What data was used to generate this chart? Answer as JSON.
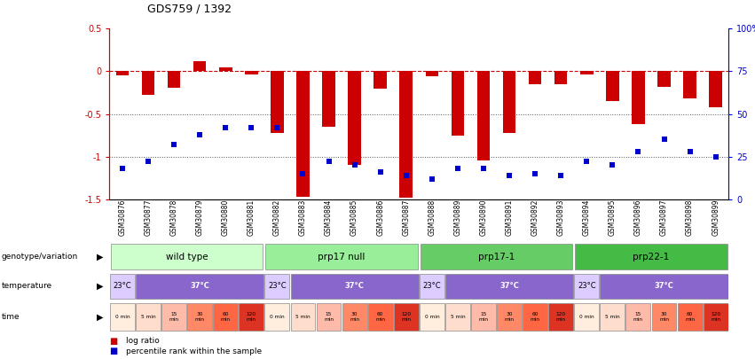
{
  "title": "GDS759 / 1392",
  "samples": [
    "GSM30876",
    "GSM30877",
    "GSM30878",
    "GSM30879",
    "GSM30880",
    "GSM30881",
    "GSM30882",
    "GSM30883",
    "GSM30884",
    "GSM30885",
    "GSM30886",
    "GSM30887",
    "GSM30888",
    "GSM30889",
    "GSM30890",
    "GSM30891",
    "GSM30892",
    "GSM30893",
    "GSM30894",
    "GSM30895",
    "GSM30896",
    "GSM30897",
    "GSM30898",
    "GSM30899"
  ],
  "log_ratio": [
    -0.05,
    -0.28,
    -0.19,
    0.12,
    0.05,
    -0.04,
    -0.72,
    -1.47,
    -0.65,
    -1.1,
    -0.2,
    -1.48,
    -0.06,
    -0.75,
    -1.05,
    -0.72,
    -0.15,
    -0.15,
    -0.04,
    -0.35,
    -0.62,
    -0.18,
    -0.32,
    -0.42
  ],
  "percentile_rank": [
    18,
    22,
    32,
    38,
    42,
    42,
    42,
    15,
    22,
    20,
    16,
    14,
    12,
    18,
    18,
    14,
    15,
    14,
    22,
    20,
    28,
    35,
    28,
    25
  ],
  "ylim_left": [
    -1.5,
    0.5
  ],
  "ylim_right": [
    0,
    100
  ],
  "bar_color": "#cc0000",
  "square_color": "#0000cc",
  "dashed_line_color": "#cc0000",
  "dotted_line_color": "#555555",
  "genotype_groups": [
    {
      "label": "wild type",
      "start": 0,
      "end": 6,
      "color": "#ccffcc"
    },
    {
      "label": "prp17 null",
      "start": 6,
      "end": 12,
      "color": "#99ee99"
    },
    {
      "label": "prp17-1",
      "start": 12,
      "end": 18,
      "color": "#66cc66"
    },
    {
      "label": "prp22-1",
      "start": 18,
      "end": 24,
      "color": "#44bb44"
    }
  ],
  "temp_groups": [
    {
      "label": "23°C",
      "start": 0,
      "end": 1,
      "color": "#ddccff"
    },
    {
      "label": "37°C",
      "start": 1,
      "end": 6,
      "color": "#8866cc"
    },
    {
      "label": "23°C",
      "start": 6,
      "end": 7,
      "color": "#ddccff"
    },
    {
      "label": "37°C",
      "start": 7,
      "end": 12,
      "color": "#8866cc"
    },
    {
      "label": "23°C",
      "start": 12,
      "end": 13,
      "color": "#ddccff"
    },
    {
      "label": "37°C",
      "start": 13,
      "end": 18,
      "color": "#8866cc"
    },
    {
      "label": "23°C",
      "start": 18,
      "end": 19,
      "color": "#ddccff"
    },
    {
      "label": "37°C",
      "start": 19,
      "end": 24,
      "color": "#8866cc"
    }
  ],
  "time_labels": [
    "0 min",
    "5 min",
    "15\nmin",
    "30\nmin",
    "60\nmin",
    "120\nmin",
    "0 min",
    "5 min",
    "15\nmin",
    "30\nmin",
    "60\nmin",
    "120\nmin",
    "0 min",
    "5 min",
    "15\nmin",
    "30\nmin",
    "60\nmin",
    "120\nmin",
    "0 min",
    "5 min",
    "15\nmin",
    "30\nmin",
    "60\nmin",
    "120\nmin"
  ],
  "time_colors": [
    "#ffeedd",
    "#ffddcc",
    "#ffbbaa",
    "#ff8866",
    "#ff6644",
    "#dd3322",
    "#ffeedd",
    "#ffddcc",
    "#ffbbaa",
    "#ff8866",
    "#ff6644",
    "#dd3322",
    "#ffeedd",
    "#ffddcc",
    "#ffbbaa",
    "#ff8866",
    "#ff6644",
    "#dd3322",
    "#ffeedd",
    "#ffddcc",
    "#ffbbaa",
    "#ff8866",
    "#ff6644",
    "#dd3322"
  ]
}
